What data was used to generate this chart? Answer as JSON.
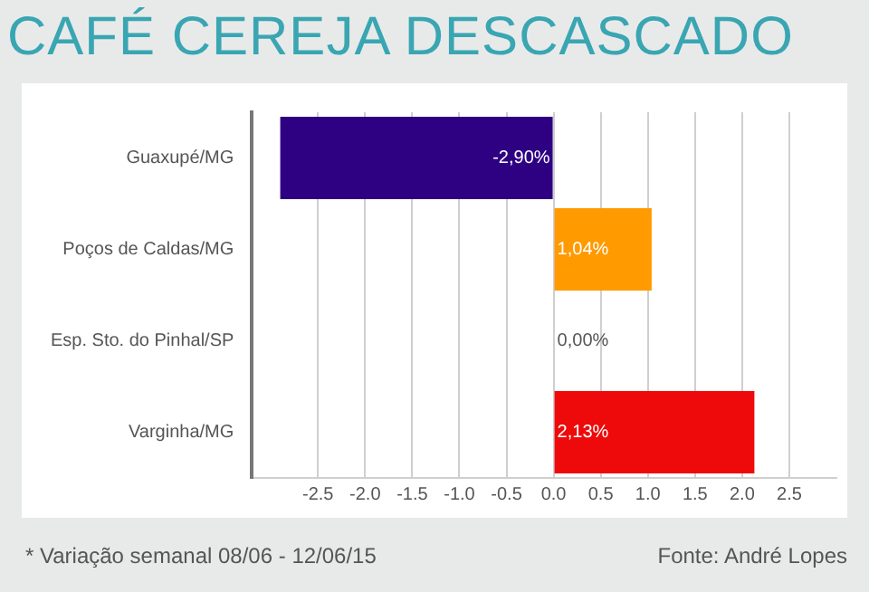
{
  "chart_data": {
    "type": "bar",
    "orientation": "horizontal",
    "title": "CAFÉ CEREJA DESCASCADO",
    "categories": [
      "Guaxupé/MG",
      "Poços de Caldas/MG",
      "Esp. Sto. do Pinhal/SP",
      "Varginha/MG"
    ],
    "values": [
      -2.9,
      1.04,
      0,
      2.13
    ],
    "colors": [
      "#2e0082",
      "#ff9a00",
      "#cccccc",
      "#ee0a0a"
    ],
    "value_labels": [
      "-2,90%",
      "1,04%",
      "0,00%",
      "2,13%"
    ],
    "xlim": [
      -3.2,
      3.0
    ],
    "xticks": [
      {
        "value": -2.5,
        "label": "-2.5"
      },
      {
        "value": -2,
        "label": "-2.0"
      },
      {
        "value": -1.5,
        "label": "-1.5"
      },
      {
        "value": -1,
        "label": "-1.0"
      },
      {
        "value": -0.5,
        "label": "-0.5"
      },
      {
        "value": 0,
        "label": "0.0"
      },
      0.5,
      {
        "value": 1,
        "label": "1.0"
      },
      1.5,
      {
        "value": 2,
        "label": "2.0"
      },
      2.5
    ],
    "grid": "x",
    "annotations": [
      "* Variação semanal 08/06 - 12/06/15",
      "Fonte: André Lopes"
    ]
  }
}
